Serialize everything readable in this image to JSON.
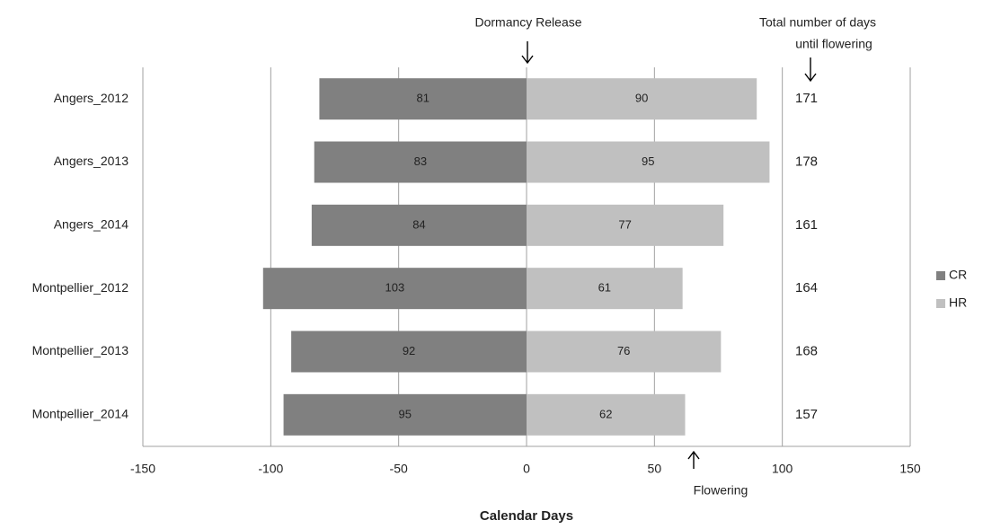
{
  "chart_data": {
    "type": "diverging-bar",
    "categories": [
      "Angers_2012",
      "Angers_2013",
      "Angers_2014",
      "Montpellier_2012",
      "Montpellier_2013",
      "Montpellier_2014"
    ],
    "series": [
      {
        "name": "CR",
        "color": "#808080",
        "values": [
          -81,
          -83,
          -84,
          -103,
          -92,
          -95
        ],
        "value_labels": [
          "81",
          "83",
          "84",
          "103",
          "92",
          "95"
        ]
      },
      {
        "name": "HR",
        "color": "#c0c0c0",
        "values": [
          90,
          95,
          77,
          61,
          76,
          62
        ]
      }
    ],
    "totals": [
      171,
      178,
      161,
      164,
      168,
      157
    ],
    "xlim": [
      -150,
      150
    ],
    "xticks": [
      -150,
      -100,
      -50,
      0,
      50,
      100,
      150
    ],
    "grid": true,
    "legend": "right",
    "x_label": "Calendar Days",
    "annotations": {
      "dormancy": "Dormancy Release",
      "total": [
        "Total number of days",
        "until flowering"
      ],
      "flowering": "Flowering"
    }
  }
}
